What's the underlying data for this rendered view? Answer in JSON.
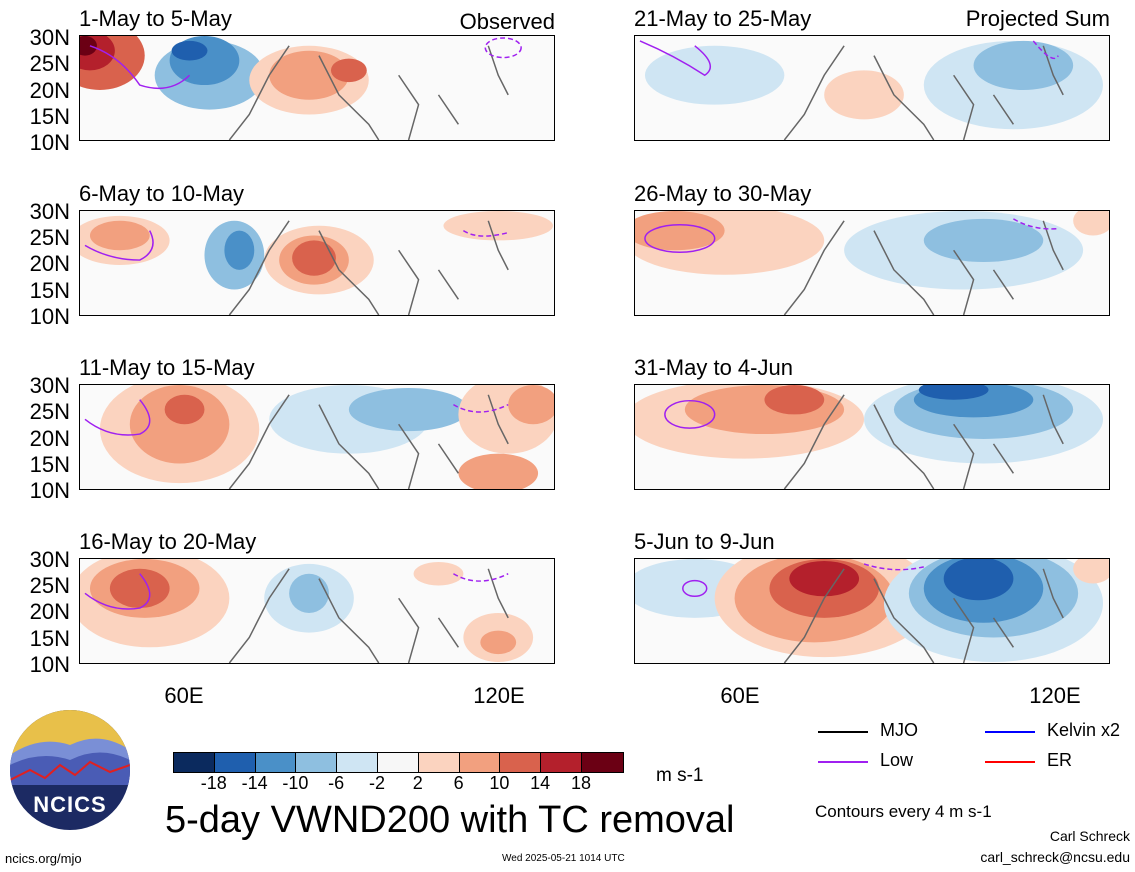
{
  "labels": {
    "observed": "Observed",
    "projected": "Projected Sum"
  },
  "panels": [
    {
      "title": "1-May to 5-May"
    },
    {
      "title": "6-May to 10-May"
    },
    {
      "title": "11-May to 15-May"
    },
    {
      "title": "16-May to 20-May"
    },
    {
      "title": "21-May to 25-May"
    },
    {
      "title": "26-May to 30-May"
    },
    {
      "title": "31-May to 4-Jun"
    },
    {
      "title": "5-Jun to 9-Jun"
    }
  ],
  "y_ticks": [
    "30N",
    "25N",
    "20N",
    "15N",
    "10N"
  ],
  "x_ticks": [
    "60E",
    "120E"
  ],
  "colorbar": {
    "ticks": [
      "-18",
      "-14",
      "-10",
      "-6",
      "-2",
      "2",
      "6",
      "10",
      "14",
      "18"
    ],
    "colors": [
      "#0b2a5e",
      "#1f5fae",
      "#4a90c8",
      "#8ebfe0",
      "#cfe5f3",
      "#f7f7f7",
      "#fbd3bf",
      "#f2a07f",
      "#d9624d",
      "#b4202c",
      "#6b0014"
    ],
    "units": "m s-1"
  },
  "legend": {
    "items": [
      {
        "label": "MJO",
        "color": "#000000"
      },
      {
        "label": "Kelvin x2",
        "color": "#0000ff"
      },
      {
        "label": "Low",
        "color": "#a020f0"
      },
      {
        "label": "ER",
        "color": "#ff0000"
      }
    ],
    "contours_note": "Contours every 4 m s-1"
  },
  "footer": {
    "logo_text": "NCICS",
    "main_title": "5-day VWND200 with TC removal",
    "site": "ncics.org/mjo",
    "timestamp": "Wed 2025-05-21 1014 UTC",
    "author": "Carl Schreck",
    "email": "carl_schreck@ncsu.edu"
  }
}
